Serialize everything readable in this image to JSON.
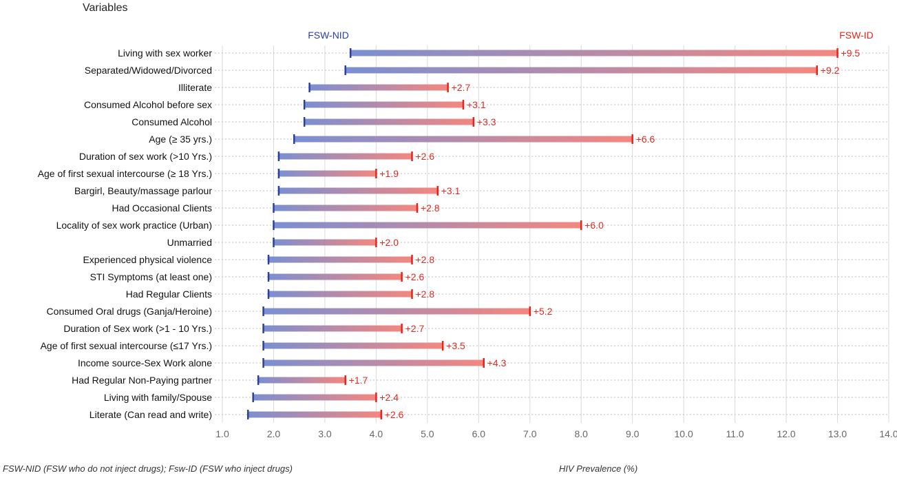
{
  "y_title": "Variables",
  "series_labels": {
    "start": "FSW-NID",
    "end": "FSW-ID"
  },
  "footnote": "FSW-NID (FSW who do not inject drugs); Fsw-ID (FSW who inject drugs)",
  "x_title": "HIV Prevalence (%)",
  "colors": {
    "start": "#2b3f9c",
    "end": "#e8231a",
    "bar_start": "#7b8fd1",
    "bar_end": "#f4877f"
  },
  "chart_data": {
    "type": "dumbbell",
    "x_label": "HIV Prevalence (%)",
    "y_label": "Variables",
    "xlim": [
      1.0,
      14.0
    ],
    "x_ticks": [
      "1.0",
      "2.0",
      "3.0",
      "4.0",
      "5.0",
      "6.0",
      "7.0",
      "8.0",
      "9.0",
      "10.0",
      "11.0",
      "12.0",
      "13.0",
      "14.0"
    ],
    "series": [
      {
        "name": "FSW-NID"
      },
      {
        "name": "FSW-ID"
      }
    ],
    "rows": [
      {
        "label": "Living with sex worker",
        "nid": 3.5,
        "id": 13.0,
        "diff": "+9.5"
      },
      {
        "label": "Separated/Widowed/Divorced",
        "nid": 3.4,
        "id": 12.6,
        "diff": "+9.2"
      },
      {
        "label": "Illiterate",
        "nid": 2.7,
        "id": 5.4,
        "diff": "+2.7"
      },
      {
        "label": "Consumed Alcohol before sex",
        "nid": 2.6,
        "id": 5.7,
        "diff": "+3.1"
      },
      {
        "label": "Consumed Alcohol",
        "nid": 2.6,
        "id": 5.9,
        "diff": "+3.3"
      },
      {
        "label": "Age (≥ 35 yrs.)",
        "nid": 2.4,
        "id": 9.0,
        "diff": "+6.6"
      },
      {
        "label": "Duration of sex work (>10 Yrs.)",
        "nid": 2.1,
        "id": 4.7,
        "diff": "+2.6"
      },
      {
        "label": "Age of first sexual intercourse (≥ 18 Yrs.)",
        "nid": 2.1,
        "id": 4.0,
        "diff": "+1.9"
      },
      {
        "label": "Bargirl, Beauty/massage parlour",
        "nid": 2.1,
        "id": 5.2,
        "diff": "+3.1"
      },
      {
        "label": "Had Occasional Clients",
        "nid": 2.0,
        "id": 4.8,
        "diff": "+2.8"
      },
      {
        "label": "Locality of sex work practice (Urban)",
        "nid": 2.0,
        "id": 8.0,
        "diff": "+6.0"
      },
      {
        "label": "Unmarried",
        "nid": 2.0,
        "id": 4.0,
        "diff": "+2.0"
      },
      {
        "label": "Experienced physical violence",
        "nid": 1.9,
        "id": 4.7,
        "diff": "+2.8"
      },
      {
        "label": "STI Symptoms (at least one)",
        "nid": 1.9,
        "id": 4.5,
        "diff": "+2.6"
      },
      {
        "label": "Had Regular Clients",
        "nid": 1.9,
        "id": 4.7,
        "diff": "+2.8"
      },
      {
        "label": "Consumed Oral drugs (Ganja/Heroine)",
        "nid": 1.8,
        "id": 7.0,
        "diff": "+5.2"
      },
      {
        "label": "Duration of Sex work (>1 - 10 Yrs.)",
        "nid": 1.8,
        "id": 4.5,
        "diff": "+2.7"
      },
      {
        "label": "Age of first sexual intercourse (≤17 Yrs.)",
        "nid": 1.8,
        "id": 5.3,
        "diff": "+3.5"
      },
      {
        "label": "Income source-Sex Work alone",
        "nid": 1.8,
        "id": 6.1,
        "diff": "+4.3"
      },
      {
        "label": "Had Regular Non-Paying partner",
        "nid": 1.7,
        "id": 3.4,
        "diff": "+1.7"
      },
      {
        "label": "Living with family/Spouse",
        "nid": 1.6,
        "id": 4.0,
        "diff": "+2.4"
      },
      {
        "label": "Literate (Can read and write)",
        "nid": 1.5,
        "id": 4.1,
        "diff": "+2.6"
      }
    ]
  }
}
